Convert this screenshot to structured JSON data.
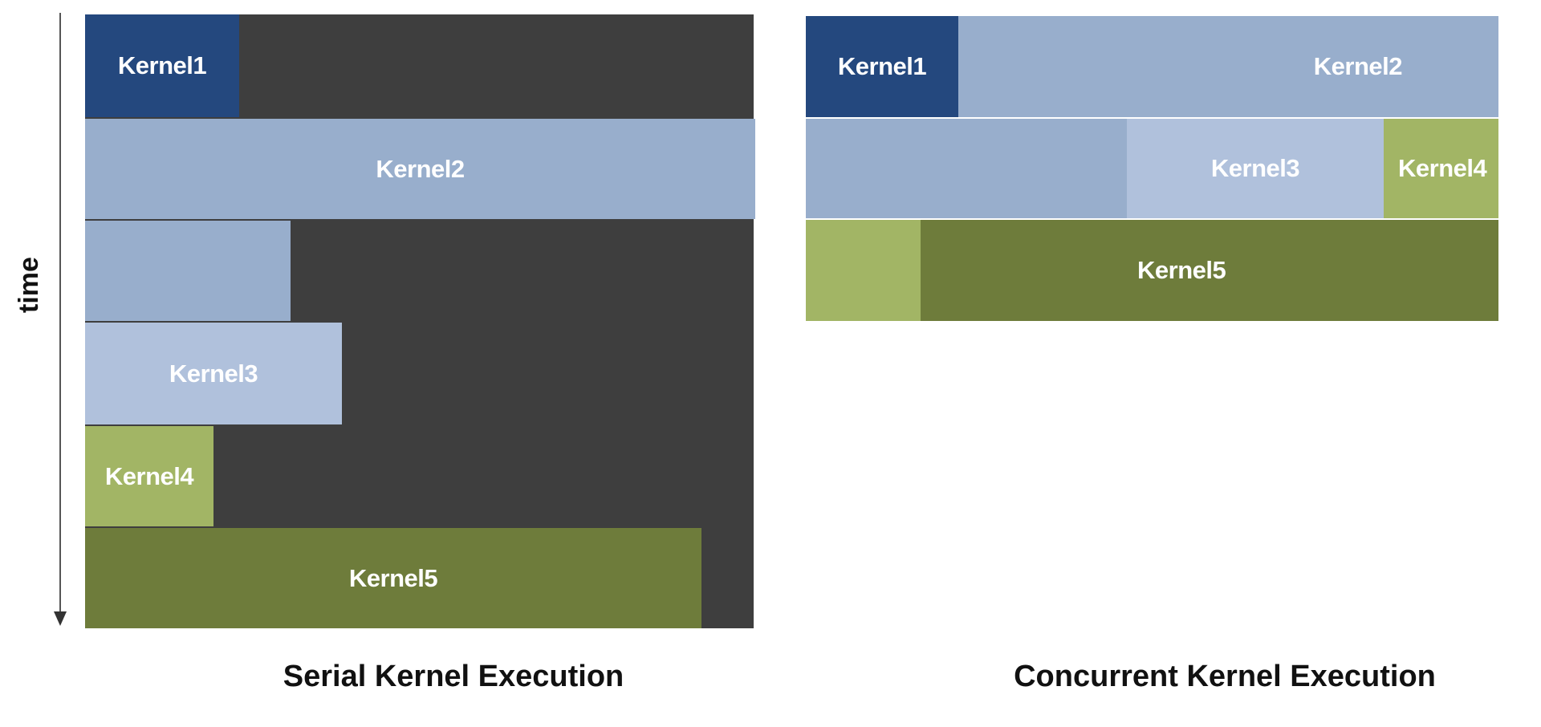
{
  "axis": {
    "label": "time"
  },
  "serial": {
    "caption": "Serial Kernel Execution",
    "blocks": [
      {
        "label": "Kernel1"
      },
      {
        "label": "Kernel2"
      },
      {
        "label": ""
      },
      {
        "label": "Kernel3"
      },
      {
        "label": "Kernel4"
      },
      {
        "label": "Kernel5"
      }
    ]
  },
  "concurrent": {
    "caption": "Concurrent Kernel Execution",
    "blocks": [
      {
        "label": "Kernel1"
      },
      {
        "label": "Kernel2"
      },
      {
        "label": ""
      },
      {
        "label": "Kernel3"
      },
      {
        "label": "Kernel4"
      },
      {
        "label": ""
      },
      {
        "label": "Kernel5"
      }
    ]
  },
  "colors": {
    "kernel1": "#24487e",
    "kernel2": "#98aecc",
    "kernel3": "#b0c1dc",
    "kernel4": "#a2b565",
    "kernel5": "#6e7c3b",
    "idle": "#3e3e3e"
  }
}
